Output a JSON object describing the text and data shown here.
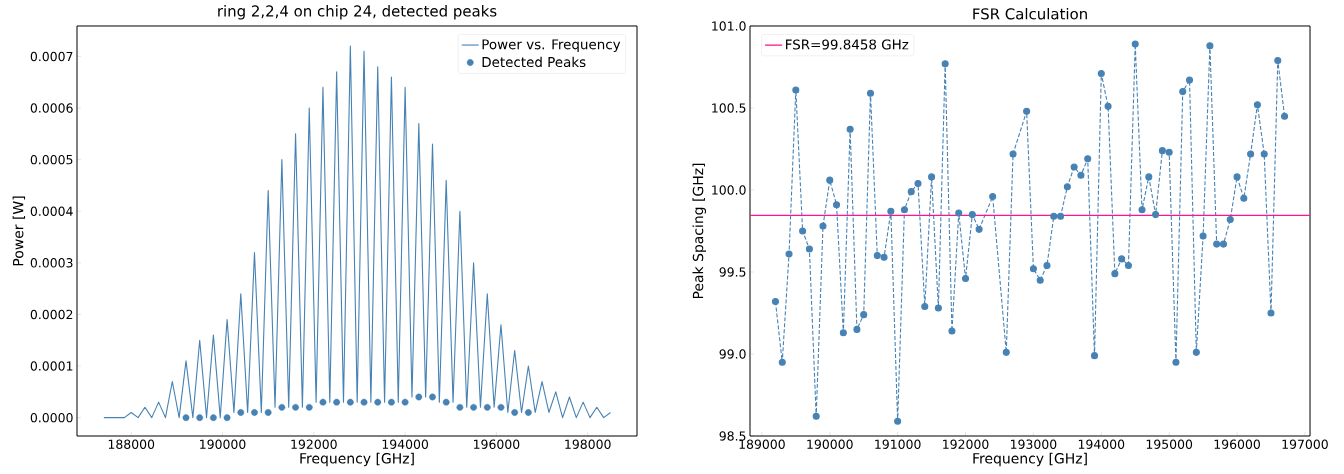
{
  "chart_data": [
    {
      "type": "line",
      "title": "ring 2,2,4 on chip 24, detected peaks",
      "xlabel": "Frequency [GHz]",
      "ylabel": "Power [W]",
      "xlim": [
        186812,
        199080
      ],
      "ylim": [
        -3.56e-05,
        0.000759
      ],
      "xticks": [
        188000,
        190000,
        192000,
        194000,
        196000,
        198000
      ],
      "yticks": [
        {
          "value": 0,
          "label": "0.0000"
        },
        {
          "value": 0.0001,
          "label": "0.0001"
        },
        {
          "value": 0.0002,
          "label": "0.0002"
        },
        {
          "value": 0.0003,
          "label": "0.0003"
        },
        {
          "value": 0.0004,
          "label": "0.0004"
        },
        {
          "value": 0.0005,
          "label": "0.0005"
        },
        {
          "value": 0.0006,
          "label": "0.0006"
        },
        {
          "value": 0.0007,
          "label": "0.0007"
        }
      ],
      "legend": "top right",
      "series": [
        {
          "name": "Power vs. Frequency",
          "color": "#4682b4",
          "x": [
            187400,
            187550,
            187700,
            187850,
            188000,
            188150,
            188300,
            188450,
            188600,
            188750,
            188900,
            189050,
            189200,
            189350,
            189500,
            189650,
            189800,
            189950,
            190100,
            190250,
            190400,
            190550,
            190700,
            190850,
            191000,
            191150,
            191300,
            191450,
            191600,
            191750,
            191900,
            192050,
            192200,
            192350,
            192500,
            192650,
            192800,
            192950,
            193100,
            193250,
            193400,
            193550,
            193700,
            193850,
            194000,
            194150,
            194300,
            194450,
            194600,
            194750,
            194900,
            195050,
            195200,
            195350,
            195500,
            195650,
            195800,
            195950,
            196100,
            196250,
            196400,
            196550,
            196700,
            196850,
            197000,
            197150,
            197300,
            197450,
            197600,
            197750,
            197900,
            198050,
            198200,
            198350,
            198500
          ],
          "values": [
            0.0,
            0.0,
            0.0,
            0.0,
            1e-05,
            0.0,
            2e-05,
            0.0,
            3e-05,
            0.0,
            7e-05,
            0.0,
            0.00011,
            0.0,
            0.00015,
            0.0,
            0.00016,
            0.0,
            0.00019,
            1e-05,
            0.00024,
            1e-05,
            0.00032,
            1e-05,
            0.00044,
            2e-05,
            0.0005,
            2e-05,
            0.00055,
            2e-05,
            0.0006,
            3e-05,
            0.00064,
            3e-05,
            0.00067,
            3e-05,
            0.00072,
            3e-05,
            0.00071,
            3e-05,
            0.00068,
            3e-05,
            0.00066,
            3e-05,
            0.00064,
            4e-05,
            0.00057,
            4e-05,
            0.00053,
            3e-05,
            0.00046,
            3e-05,
            0.0004,
            2e-05,
            0.0003,
            2e-05,
            0.00024,
            2e-05,
            0.00018,
            1e-05,
            0.00013,
            1e-05,
            0.0001,
            1e-05,
            7e-05,
            1e-05,
            5e-05,
            0.0,
            4e-05,
            0.0,
            3e-05,
            0.0,
            2e-05,
            0.0,
            1e-05
          ]
        },
        {
          "name": "Detected Peaks",
          "type": "scatter",
          "color": "#4682b4",
          "marker": "circle",
          "x": [
            189200,
            189500,
            189800,
            190100,
            190400,
            190700,
            191000,
            191300,
            191600,
            191900,
            192200,
            192500,
            192800,
            193100,
            193400,
            193700,
            194000,
            194300,
            194600,
            194900,
            195200,
            195500,
            195800,
            196100,
            196400,
            196700
          ],
          "values": [
            0.0,
            0.0,
            0.0,
            0.0,
            1e-05,
            1e-05,
            1e-05,
            2e-05,
            2e-05,
            2e-05,
            3e-05,
            3e-05,
            3e-05,
            3e-05,
            3e-05,
            3e-05,
            3e-05,
            4e-05,
            4e-05,
            3e-05,
            2e-05,
            2e-05,
            2e-05,
            2e-05,
            1e-05,
            1e-05
          ]
        }
      ]
    },
    {
      "type": "line",
      "title": "FSR Calculation",
      "xlabel": "Frequency [GHz]",
      "ylabel": "Peak Spacing [GHz]",
      "xlim": [
        188825,
        197075
      ],
      "ylim": [
        98.5,
        101.0
      ],
      "xticks": [
        189000,
        190000,
        191000,
        192000,
        193000,
        194000,
        195000,
        196000,
        197000
      ],
      "yticks": [
        {
          "value": 98.5,
          "label": "98.5"
        },
        {
          "value": 99.0,
          "label": "99.0"
        },
        {
          "value": 99.5,
          "label": "99.5"
        },
        {
          "value": 100.0,
          "label": "100.0"
        },
        {
          "value": 100.5,
          "label": "100.5"
        },
        {
          "value": 101.0,
          "label": "101.0"
        }
      ],
      "legend": "top left",
      "ref_lines": [
        {
          "axis": "y",
          "value": 99.8458,
          "label": "FSR=99.8458 GHz",
          "color": "#ff1493"
        }
      ],
      "series": [
        {
          "color": "#4682b4",
          "marker": "circle",
          "line_style": "dashed",
          "x": [
            189200,
            189300,
            189400,
            189500,
            189600,
            189700,
            189800,
            189900,
            190000,
            190100,
            190200,
            190300,
            190400,
            190500,
            190600,
            190700,
            190800,
            190900,
            191000,
            191100,
            191200,
            191300,
            191400,
            191500,
            191600,
            191700,
            191800,
            191900,
            192000,
            192100,
            192200,
            192400,
            192600,
            192700,
            192900,
            193000,
            193100,
            193200,
            193300,
            193400,
            193500,
            193600,
            193700,
            193800,
            193900,
            194000,
            194100,
            194200,
            194300,
            194400,
            194500,
            194600,
            194700,
            194800,
            194900,
            195000,
            195100,
            195200,
            195300,
            195400,
            195500,
            195600,
            195700,
            195800,
            195900,
            196000,
            196100,
            196200,
            196300,
            196400,
            196500,
            196600,
            196700
          ],
          "values": [
            99.32,
            98.95,
            99.61,
            100.61,
            99.75,
            99.64,
            98.62,
            99.78,
            100.06,
            99.91,
            99.13,
            100.37,
            99.15,
            99.24,
            100.59,
            99.6,
            99.59,
            99.87,
            98.59,
            99.88,
            99.99,
            100.04,
            99.29,
            100.08,
            99.28,
            100.77,
            99.14,
            99.86,
            99.46,
            99.85,
            99.76,
            99.96,
            99.01,
            100.22,
            100.48,
            99.52,
            99.45,
            99.54,
            99.84,
            99.84,
            100.02,
            100.14,
            100.09,
            100.19,
            98.99,
            100.71,
            100.51,
            99.49,
            99.58,
            99.54,
            100.89,
            99.88,
            100.08,
            99.85,
            100.24,
            100.23,
            98.95,
            100.6,
            100.67,
            99.01,
            99.72,
            100.88,
            99.67,
            99.67,
            99.82,
            100.08,
            99.95,
            100.22,
            100.52,
            100.22,
            99.25,
            100.79,
            100.45
          ]
        }
      ]
    }
  ]
}
